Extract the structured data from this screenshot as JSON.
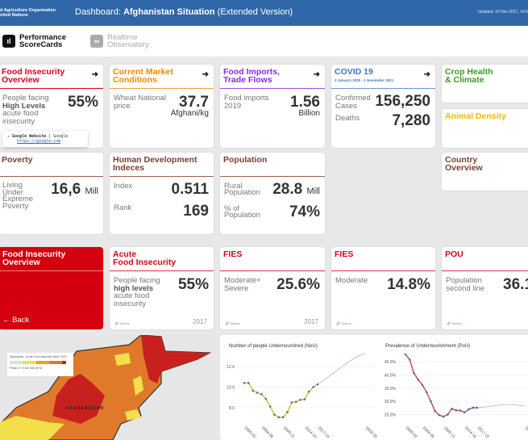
{
  "header": {
    "org_line1": "d Agriculture Organization",
    "org_line2": "nited Nations",
    "title_prefix": "Dashboard: ",
    "title_bold": "Afghanistan Situation",
    "title_suffix": " (Extended Version)",
    "updated": "Updated: 19 Nov 2021, 14:0"
  },
  "nav": [
    {
      "label1": "Performance",
      "label2": "ScoreCards",
      "icon": "bar-chart-icon",
      "active": true
    },
    {
      "label1": "Realtime",
      "label2": "Observatory",
      "icon": "binoculars-icon",
      "active": false
    }
  ],
  "colors": {
    "header": "#2f67a8",
    "red": "#d9001b",
    "orange": "#f08a00",
    "purple": "#8a2be2",
    "blue": "#3a78c0",
    "green": "#3c9a1c",
    "yellow": "#f2b900",
    "brown": "#7a4030"
  },
  "cards": {
    "food_insecurity": {
      "title1": "Food Insecurity",
      "title2": "Overview",
      "l1": "People facing",
      "l2": "High Levels",
      "l3": "acute food",
      "l4": "insecurity",
      "value": "55%"
    },
    "market": {
      "title1": "Current Market",
      "title2": "Conditions",
      "label1": "Wheat National",
      "label2": "price",
      "value": "37.7",
      "unit": "Afghani/kg"
    },
    "imports": {
      "title1": "Food Imports,",
      "title2": "Trade Flows",
      "label1": "Food imports",
      "label2": "2019",
      "value": "1.56",
      "unit": "Billion"
    },
    "covid": {
      "title": "COVID 19",
      "subtitle": "3 January 2020 - 1 November 2021",
      "l1": "Confirmed",
      "l2": "Cases",
      "cases": "156,250",
      "deaths_label": "Deaths",
      "deaths": "7,280"
    },
    "crop": {
      "title1": "Crop Health",
      "title2": "& Climate"
    },
    "animal": {
      "title": "Animal Density"
    },
    "poverty": {
      "title": "Poverty",
      "l1": "Living",
      "l2": "Under",
      "l3": "Expreme",
      "l4": "Poverty",
      "value": "16,6",
      "unit": "Mill"
    },
    "hdi": {
      "title1": "Human Development",
      "title2": "Indeces",
      "index_label": "Index",
      "index": "0.511",
      "rank_label": "Rank",
      "rank": "169"
    },
    "population": {
      "title": "Population",
      "r1": "Rural",
      "r2": "Population",
      "rural": "28.8",
      "unit": "Mill",
      "p1": "% of",
      "p2": "Population",
      "pct": "74%"
    },
    "country": {
      "title1": "Country",
      "title2": "Overview"
    }
  },
  "tooltip": {
    "title": "Google Website",
    "sep": " | Google",
    "url": "https://google.com"
  },
  "detail": {
    "side": {
      "title1": "Food Insecurity",
      "title2": "Overview",
      "back": "← Back"
    },
    "acute": {
      "title1": "Acute",
      "title2": "Food Insecurity",
      "l1": "People facing",
      "l2": "high levels",
      "l3": "acute food",
      "l4": "insecurity",
      "value": "55%",
      "source": "Source",
      "year": "2017"
    },
    "fies1": {
      "title": "FIES",
      "l1": "Moderate+",
      "l2": "Severe",
      "value": "25.6%",
      "source": "Source",
      "year": "2017"
    },
    "fies2": {
      "title": "FIES",
      "l1": "Moderate",
      "value": "14.8%",
      "source": "Source"
    },
    "pou": {
      "title": "POU",
      "l1": "Population",
      "l2": "second line",
      "value": "36.1",
      "source": "Source"
    }
  },
  "map": {
    "legend_title": "Afghanistan - Acute Food Insecurity March 2021",
    "legend_phase": "Phase 3+: 9,462,948 (30%)",
    "country_label": "AFGHANISTAN",
    "phase_colors": [
      "#cdeccd",
      "#f5e23a",
      "#f0a020",
      "#e07a20",
      "#c8201e"
    ]
  },
  "chart_data": [
    {
      "type": "line",
      "title": "Number of people Undernourished (NoU)",
      "x_ticks": [
        "2000-02",
        "2004-06",
        "2009-11",
        "2014-16",
        "2017-19",
        "2028-30"
      ],
      "y_ticks": [
        "12.0",
        "10.0",
        "8.0"
      ],
      "ylim": [
        6.8,
        13.5
      ],
      "series": [
        {
          "values": [
            10.4,
            10.4,
            9.65,
            9.45,
            9.3,
            8.85,
            8.1,
            7.3,
            7.05,
            7.05,
            7.55,
            8.5,
            8.55,
            8.75,
            8.8,
            9.55,
            10.0,
            10.25
          ],
          "color": "#d4c422"
        },
        {
          "projection": [
            10.25,
            10.9,
            11.6,
            12.3,
            12.9,
            13.3
          ],
          "color": "#7a7aee"
        }
      ]
    },
    {
      "type": "line",
      "title": "Prevalence of Undernourishment (PoU)",
      "x_ticks": [
        "2000-02",
        "2004-06",
        "2009-11",
        "2014-16",
        "2017-19",
        "2028-30"
      ],
      "y_ticks": [
        "45.0%",
        "40.0%",
        "35.0%",
        "30.0%",
        "25.0%"
      ],
      "ylim": [
        23,
        49
      ],
      "series": [
        {
          "values": [
            47.8,
            45.8,
            40.7,
            38.2,
            36.2,
            33.5,
            30.0,
            26.3,
            24.8,
            24.2,
            25.0,
            27.2,
            26.6,
            26.5,
            25.8,
            27.0,
            27.6,
            27.6
          ],
          "color": "#d05050"
        },
        {
          "projection": [
            27.6,
            27.9,
            28.4,
            28.8,
            28.7,
            28.2
          ],
          "color": "#7a7aee"
        }
      ]
    }
  ]
}
